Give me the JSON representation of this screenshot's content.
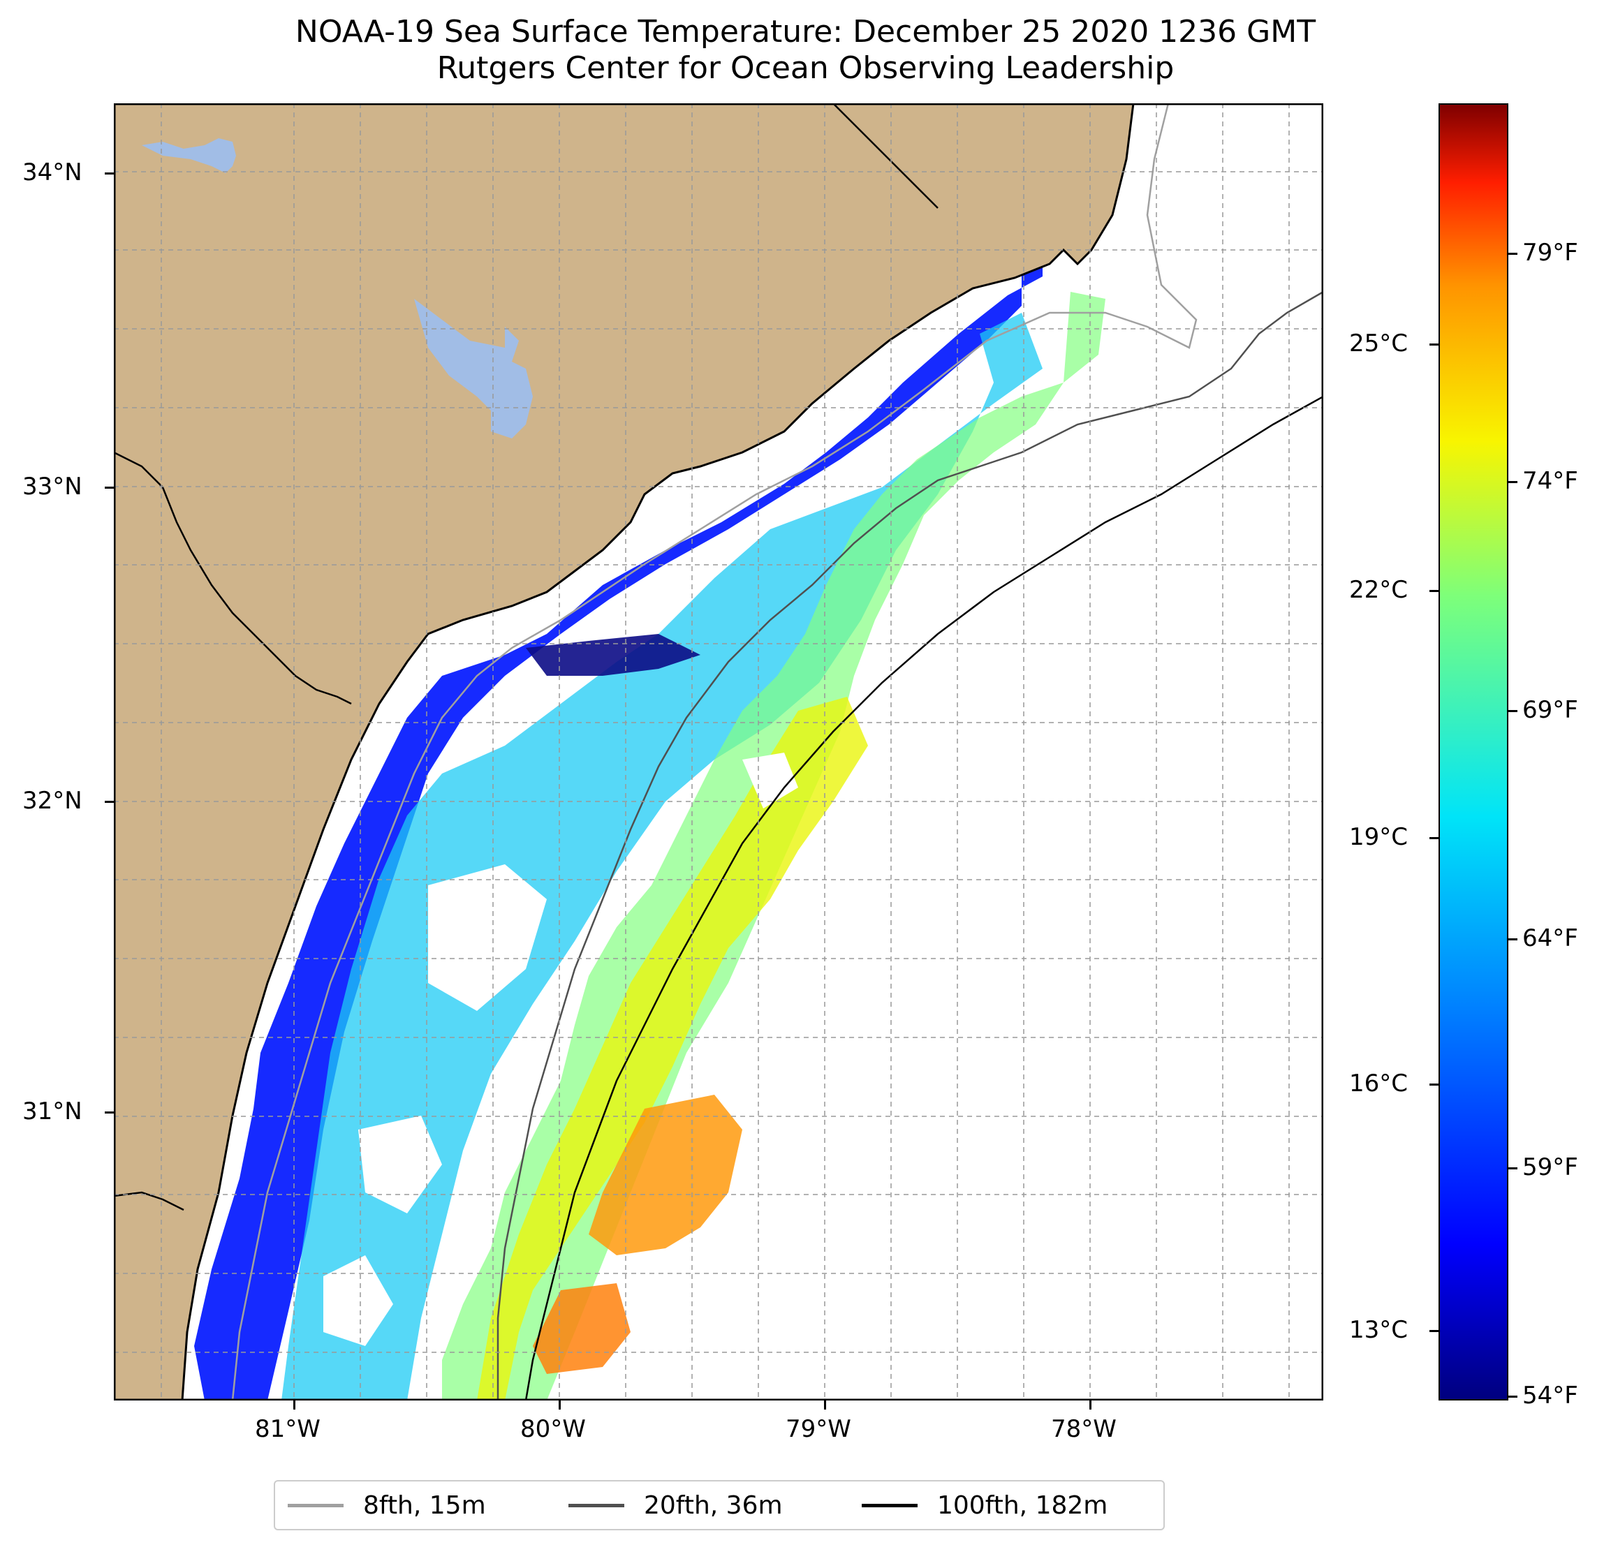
{
  "title": {
    "line1": "NOAA-19 Sea Surface Temperature: December 25 2020 1236 GMT",
    "line2": "Rutgers Center for Ocean Observing Leadership"
  },
  "map": {
    "land_color": "#cfb48b",
    "water_inland_color": "#a1bde6",
    "ocean_color": "#ffffff",
    "grid": true,
    "lat_labels": [
      "34°N",
      "33°N",
      "32°N",
      "31°N"
    ],
    "lon_labels": [
      "81°W",
      "80°W",
      "79°W",
      "78°W"
    ],
    "extent": {
      "lon": [
        -81.68,
        -77.12
      ],
      "lat": [
        30.1,
        34.22
      ]
    }
  },
  "colorbar": {
    "colormap": "jet",
    "celsius_labels": [
      "25°C",
      "22°C",
      "19°C",
      "16°C",
      "13°C"
    ],
    "fahrenheit_labels": [
      "79°F",
      "74°F",
      "69°F",
      "64°F",
      "59°F",
      "54°F"
    ]
  },
  "legend": [
    {
      "label": "8fth, 15m",
      "color": "#a0a0a0"
    },
    {
      "label": "20fth, 36m",
      "color": "#505050"
    },
    {
      "label": "100fth, 182m",
      "color": "#000000"
    }
  ]
}
